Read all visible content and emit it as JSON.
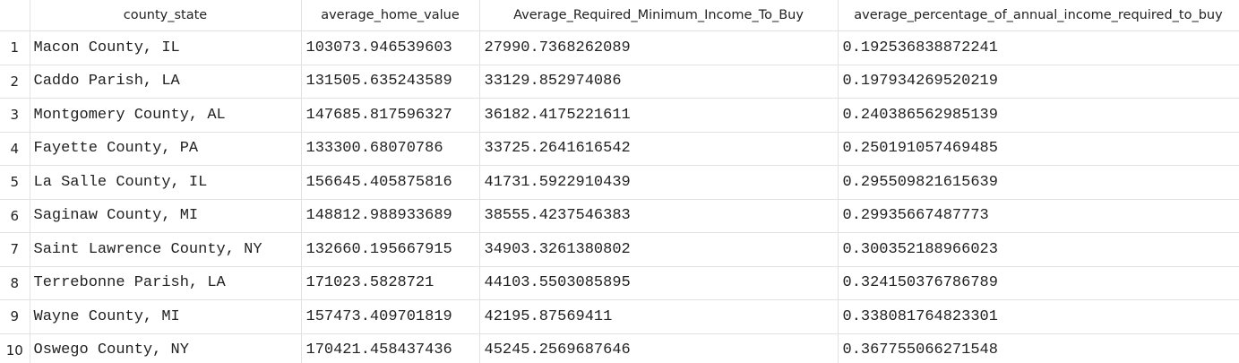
{
  "table": {
    "columns": [
      "county_state",
      "average_home_value",
      "Average_Required_Minimum_Income_To_Buy",
      "average_percentage_of_annual_income_required_to_buy"
    ],
    "rows": [
      {
        "num": "1",
        "county_state": "Macon County, IL",
        "average_home_value": "103073.946539603",
        "min_income": "27990.7368262089",
        "pct_income": "0.192536838872241"
      },
      {
        "num": "2",
        "county_state": "Caddo Parish, LA",
        "average_home_value": "131505.635243589",
        "min_income": "33129.852974086",
        "pct_income": "0.197934269520219"
      },
      {
        "num": "3",
        "county_state": "Montgomery County, AL",
        "average_home_value": "147685.817596327",
        "min_income": "36182.4175221611",
        "pct_income": "0.240386562985139"
      },
      {
        "num": "4",
        "county_state": "Fayette County, PA",
        "average_home_value": "133300.68070786",
        "min_income": "33725.2641616542",
        "pct_income": "0.250191057469485"
      },
      {
        "num": "5",
        "county_state": "La Salle County, IL",
        "average_home_value": "156645.405875816",
        "min_income": "41731.5922910439",
        "pct_income": "0.295509821615639"
      },
      {
        "num": "6",
        "county_state": "Saginaw County, MI",
        "average_home_value": "148812.988933689",
        "min_income": "38555.4237546383",
        "pct_income": "0.29935667487773"
      },
      {
        "num": "7",
        "county_state": "Saint Lawrence County, NY",
        "average_home_value": "132660.195667915",
        "min_income": "34903.3261380802",
        "pct_income": "0.300352188966023"
      },
      {
        "num": "8",
        "county_state": "Terrebonne Parish, LA",
        "average_home_value": "171023.5828721",
        "min_income": "44103.5503085895",
        "pct_income": "0.324150376786789"
      },
      {
        "num": "9",
        "county_state": "Wayne County, MI",
        "average_home_value": "157473.409701819",
        "min_income": "42195.87569411",
        "pct_income": "0.338081764823301"
      },
      {
        "num": "10",
        "county_state": "Oswego County, NY",
        "average_home_value": "170421.458437436",
        "min_income": "45245.2569687646",
        "pct_income": "0.367755066271548"
      }
    ]
  }
}
